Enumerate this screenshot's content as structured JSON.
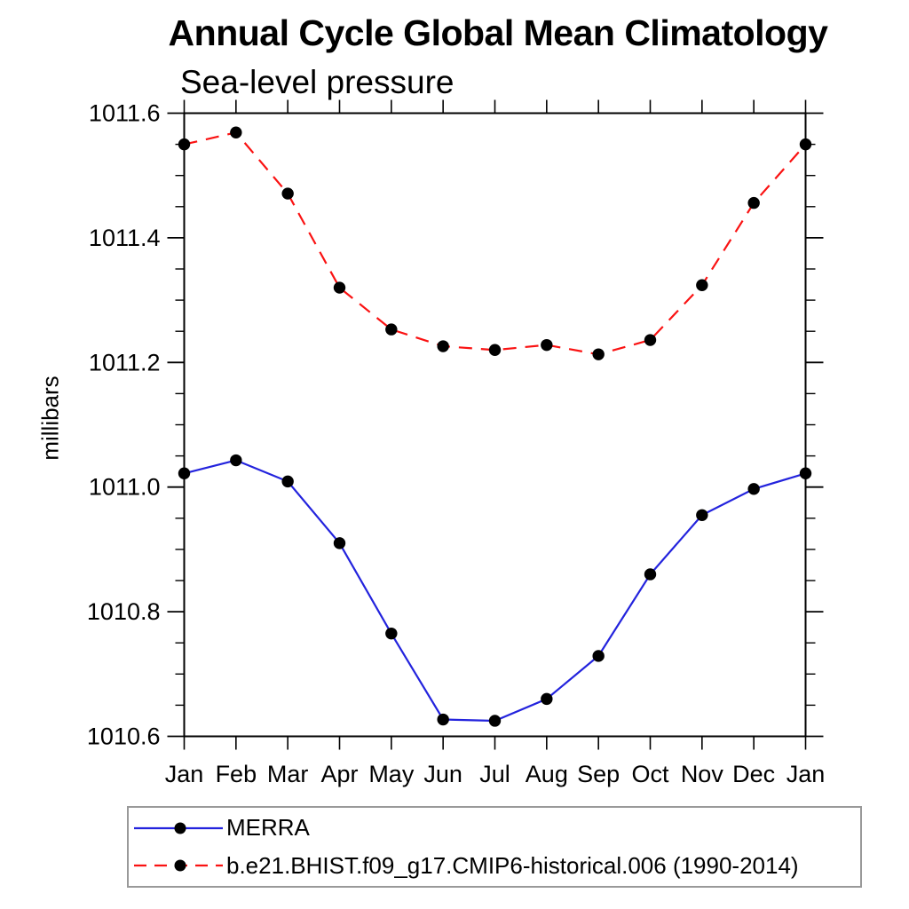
{
  "chart_data": {
    "type": "line",
    "title": "Annual Cycle Global Mean Climatology",
    "subtitle": "Sea-level pressure",
    "ylabel": "millibars",
    "yunit": "millibars",
    "x_tick_labels": [
      "Jan",
      "Feb",
      "Mar",
      "Apr",
      "May",
      "Jun",
      "Jul",
      "Aug",
      "Sep",
      "Oct",
      "Nov",
      "Dec",
      "Jan"
    ],
    "ylim": [
      1010.6,
      1011.6
    ],
    "y_major_ticks": [
      1010.6,
      1010.8,
      1011.0,
      1011.2,
      1011.4,
      1011.6
    ],
    "y_minor_step": 0.05,
    "grid": false,
    "legend_position": "bottom-left-box",
    "series": [
      {
        "name": "MERRA",
        "line_style": "solid",
        "color": "#2323dd",
        "marker": "filled-circle",
        "marker_color": "#000000",
        "values": [
          1011.022,
          1011.043,
          1011.009,
          1010.91,
          1010.765,
          1010.627,
          1010.625,
          1010.66,
          1010.729,
          1010.86,
          1010.955,
          1010.997,
          1011.022
        ]
      },
      {
        "name": "b.e21.BHIST.f09_g17.CMIP6-historical.006 (1990-2014)",
        "line_style": "dashed",
        "color": "#fa1212",
        "marker": "filled-circle",
        "marker_color": "#000000",
        "values": [
          1011.55,
          1011.569,
          1011.471,
          1011.32,
          1011.253,
          1011.226,
          1011.22,
          1011.228,
          1011.213,
          1011.236,
          1011.324,
          1011.456,
          1011.55
        ]
      }
    ]
  }
}
